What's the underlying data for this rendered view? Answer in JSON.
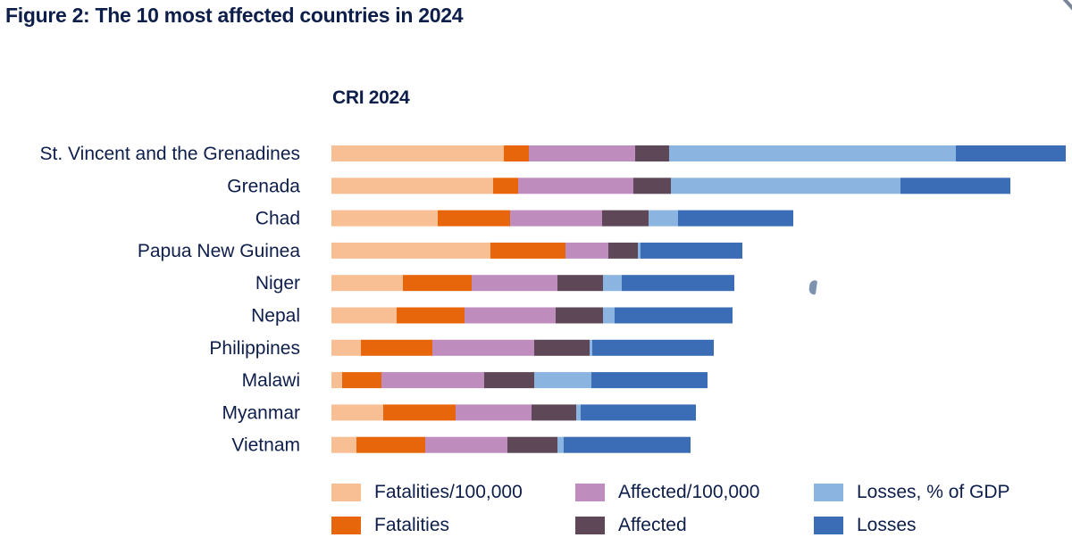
{
  "figure": {
    "title": "Figure 2: The 10 most affected countries in 2024"
  },
  "chart_data": {
    "type": "bar",
    "orientation": "horizontal",
    "stacked": true,
    "title": "CRI 2024",
    "xlabel": "",
    "ylabel": "",
    "grid": false,
    "axis_ticks_shown": false,
    "legend_position": "bottom",
    "value_note": "Relative segment lengths (no numeric axis shown); longest bar = 822 units",
    "categories": [
      "St. Vincent and the Grenadines",
      "Grenada",
      "Chad",
      "Papua New Guinea",
      "Niger",
      "Nepal",
      "Philippines",
      "Malawi",
      "Myanmar",
      "Vietnam"
    ],
    "series": [
      {
        "name": "Fatalities/100,000",
        "color": "#F9BF94",
        "values": [
          193,
          181,
          119,
          178,
          80,
          73,
          33,
          12,
          58,
          28
        ]
      },
      {
        "name": "Fatalities",
        "color": "#E8660B",
        "values": [
          28,
          28,
          81,
          84,
          77,
          76,
          80,
          44,
          81,
          77
        ]
      },
      {
        "name": "Affected/100,000",
        "color": "#BF8CBE",
        "values": [
          119,
          129,
          103,
          48,
          96,
          102,
          114,
          115,
          85,
          92
        ]
      },
      {
        "name": "Affected",
        "color": "#5E4858",
        "values": [
          38,
          42,
          52,
          33,
          51,
          53,
          62,
          56,
          50,
          56
        ]
      },
      {
        "name": "Losses, % of GDP",
        "color": "#8BB4E0",
        "values": [
          321,
          257,
          33,
          3,
          21,
          13,
          3,
          64,
          5,
          7
        ]
      },
      {
        "name": "Losses",
        "color": "#3A6DB5",
        "values": [
          123,
          123,
          129,
          114,
          126,
          132,
          136,
          130,
          129,
          142
        ]
      }
    ],
    "xlim": [
      0,
      822
    ]
  },
  "legend": {
    "items": [
      {
        "label": "Fatalities/100,000",
        "color": "#F9BF94"
      },
      {
        "label": "Fatalities",
        "color": "#E8660B"
      },
      {
        "label": "Affected/100,000",
        "color": "#BF8CBE"
      },
      {
        "label": "Affected",
        "color": "#5E4858"
      },
      {
        "label": "Losses, % of GDP",
        "color": "#8BB4E0"
      },
      {
        "label": "Losses",
        "color": "#3A6DB5"
      }
    ]
  }
}
